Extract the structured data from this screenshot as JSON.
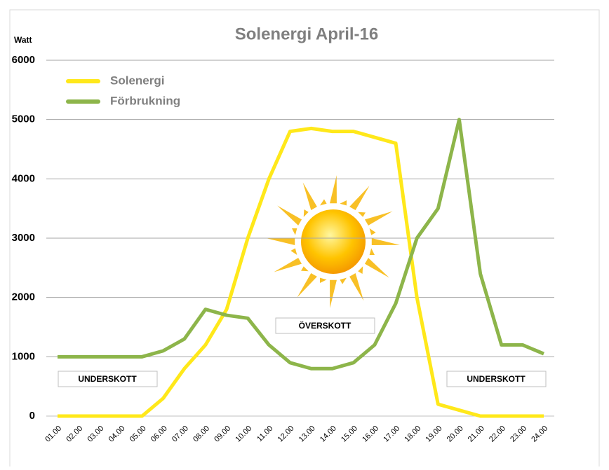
{
  "chart_data": {
    "type": "line",
    "title": "Solenergi April-16",
    "y_axis_label": "Watt",
    "categories": [
      "01.00",
      "02.00",
      "03.00",
      "04.00",
      "05.00",
      "06.00",
      "07.00",
      "08.00",
      "09.00",
      "10.00",
      "11.00",
      "12.00",
      "13.00",
      "14.00",
      "15.00",
      "16.00",
      "17.00",
      "18.00",
      "19.00",
      "20.00",
      "21.00",
      "22.00",
      "23.00",
      "24.00"
    ],
    "series": [
      {
        "name": "Solenergi",
        "color": "#ffe81a",
        "values": [
          0,
          0,
          0,
          0,
          0,
          300,
          800,
          1200,
          1800,
          3000,
          4000,
          4800,
          4850,
          4800,
          4800,
          4700,
          4600,
          2000,
          200,
          100,
          0,
          0,
          0,
          0
        ]
      },
      {
        "name": "Förbrukning",
        "color": "#8db54a",
        "values": [
          1000,
          1000,
          1000,
          1000,
          1000,
          1100,
          1300,
          1800,
          1700,
          1650,
          1200,
          900,
          800,
          800,
          900,
          1200,
          1900,
          3000,
          3500,
          5000,
          2400,
          1200,
          1200,
          1050
        ]
      }
    ],
    "annotations": [
      "UNDERSKOTT",
      "ÖVERSKOTT",
      "UNDERSKOTT"
    ],
    "ylim": [
      0,
      6000
    ],
    "yticks": [
      0,
      1000,
      2000,
      3000,
      4000,
      5000,
      6000
    ],
    "grid": true,
    "legend": "upper left"
  }
}
